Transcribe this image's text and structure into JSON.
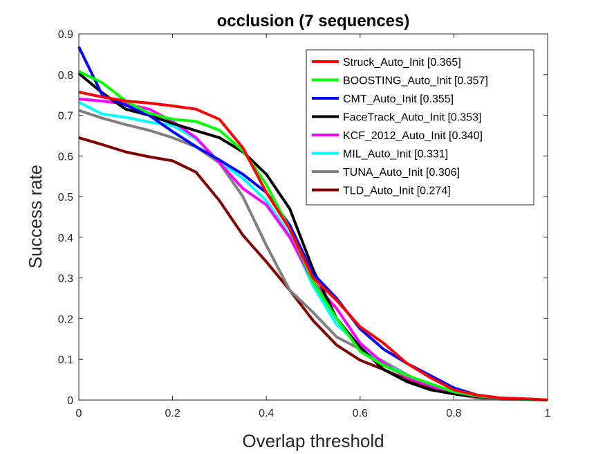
{
  "chart_data": {
    "type": "line",
    "title": "occlusion (7 sequences)",
    "xlabel": "Overlap threshold",
    "ylabel": "Success rate",
    "xlim": [
      0,
      1
    ],
    "ylim": [
      0,
      0.9
    ],
    "x_ticks": [
      "0",
      "0.2",
      "0.4",
      "0.6",
      "0.8",
      "1"
    ],
    "y_ticks": [
      "0",
      "0.1",
      "0.2",
      "0.3",
      "0.4",
      "0.5",
      "0.6",
      "0.7",
      "0.8",
      "0.9"
    ],
    "grid": false,
    "legend_position": "top-right",
    "x": [
      0,
      0.05,
      0.1,
      0.15,
      0.2,
      0.25,
      0.3,
      0.35,
      0.4,
      0.45,
      0.5,
      0.55,
      0.6,
      0.65,
      0.7,
      0.75,
      0.8,
      0.85,
      0.9,
      0.95,
      1.0
    ],
    "series": [
      {
        "name": "Struck_Auto_Init [0.365]",
        "color": "#ff0000",
        "values": [
          0.757,
          0.745,
          0.735,
          0.73,
          0.723,
          0.715,
          0.69,
          0.62,
          0.51,
          0.42,
          0.3,
          0.245,
          0.18,
          0.14,
          0.09,
          0.055,
          0.025,
          0.012,
          0.005,
          0.003,
          0.0
        ]
      },
      {
        "name": "BOOSTING_Auto_Init [0.357]",
        "color": "#00ff00",
        "values": [
          0.808,
          0.78,
          0.735,
          0.705,
          0.69,
          0.685,
          0.663,
          0.613,
          0.53,
          0.42,
          0.29,
          0.2,
          0.12,
          0.085,
          0.06,
          0.04,
          0.02,
          0.01,
          0.005,
          0.002,
          0.0
        ]
      },
      {
        "name": "CMT_Auto_Init [0.355]",
        "color": "#0000ff",
        "values": [
          0.868,
          0.75,
          0.725,
          0.7,
          0.66,
          0.623,
          0.59,
          0.555,
          0.51,
          0.43,
          0.31,
          0.25,
          0.175,
          0.125,
          0.09,
          0.06,
          0.03,
          0.012,
          0.005,
          0.002,
          0.0
        ]
      },
      {
        "name": "FaceTrack_Auto_Init [0.353]",
        "color": "#000000",
        "values": [
          0.803,
          0.755,
          0.715,
          0.7,
          0.68,
          0.662,
          0.645,
          0.61,
          0.555,
          0.47,
          0.32,
          0.2,
          0.13,
          0.075,
          0.045,
          0.025,
          0.015,
          0.008,
          0.005,
          0.002,
          0.0
        ]
      },
      {
        "name": "KCF_2012_Auto_Init [0.340]",
        "color": "#ff00ff",
        "values": [
          0.74,
          0.735,
          0.728,
          0.715,
          0.685,
          0.645,
          0.583,
          0.52,
          0.48,
          0.4,
          0.29,
          0.225,
          0.14,
          0.09,
          0.055,
          0.035,
          0.015,
          0.008,
          0.005,
          0.002,
          0.0
        ]
      },
      {
        "name": "MIL_Auto_Init [0.331]",
        "color": "#00ffff",
        "values": [
          0.732,
          0.703,
          0.695,
          0.683,
          0.675,
          0.642,
          0.585,
          0.545,
          0.49,
          0.405,
          0.28,
          0.185,
          0.135,
          0.09,
          0.06,
          0.04,
          0.02,
          0.008,
          0.005,
          0.002,
          0.0
        ]
      },
      {
        "name": "TUNA_Auto_Init [0.306]",
        "color": "#808080",
        "values": [
          0.712,
          0.693,
          0.677,
          0.663,
          0.645,
          0.622,
          0.583,
          0.5,
          0.38,
          0.27,
          0.215,
          0.155,
          0.125,
          0.095,
          0.062,
          0.035,
          0.015,
          0.005,
          0.002,
          0.001,
          0.0
        ]
      },
      {
        "name": "TLD_Auto_Init [0.274]",
        "color": "#800000",
        "values": [
          0.645,
          0.628,
          0.61,
          0.598,
          0.588,
          0.56,
          0.49,
          0.405,
          0.34,
          0.27,
          0.195,
          0.135,
          0.098,
          0.075,
          0.05,
          0.03,
          0.015,
          0.01,
          0.005,
          0.003,
          0.0
        ]
      }
    ]
  }
}
